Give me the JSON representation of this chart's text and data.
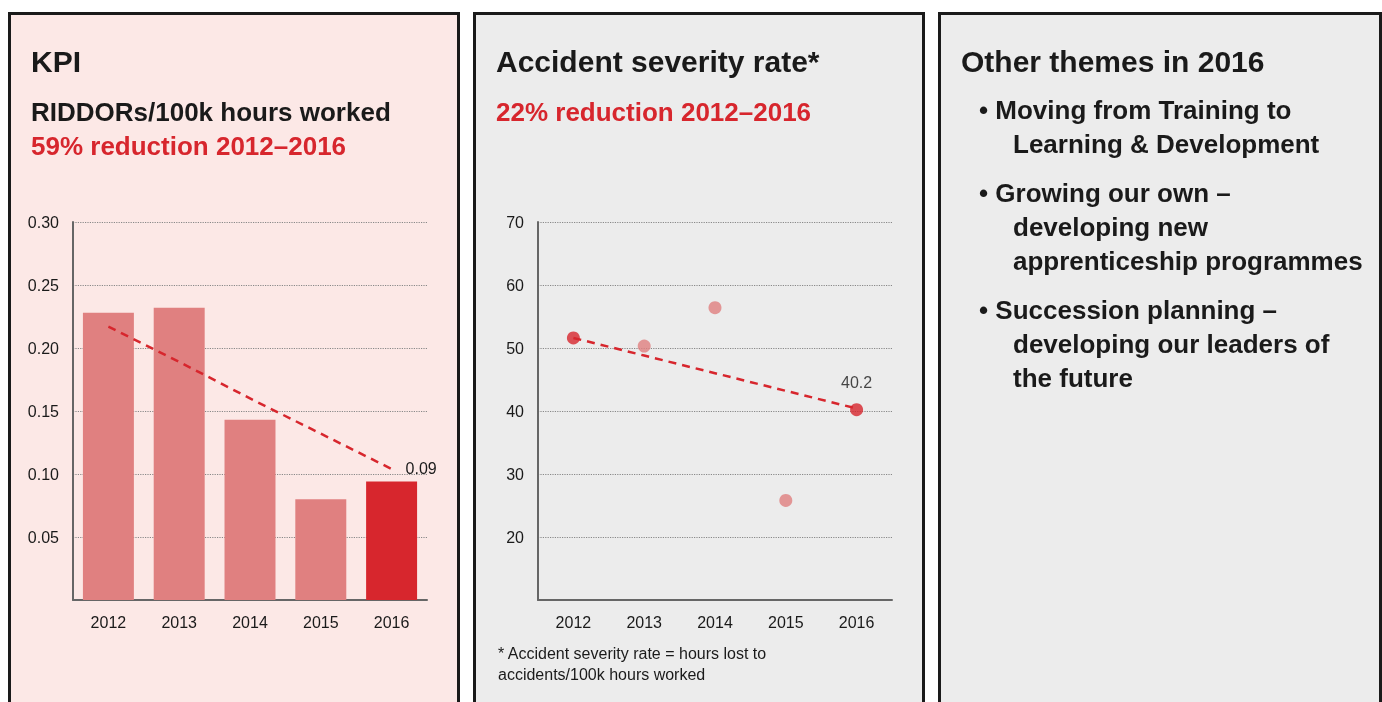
{
  "chart_data": [
    {
      "type": "bar",
      "title": "KPI",
      "ylabel": "RIDDORs/100k hours worked",
      "subtitle": "59% reduction 2012–2016",
      "categories": [
        "2012",
        "2013",
        "2014",
        "2015",
        "2016"
      ],
      "series": [
        {
          "values": [
            0.228,
            0.232,
            0.143,
            0.08,
            0.094
          ],
          "colors": [
            "#e08080",
            "#e08080",
            "#e08080",
            "#e08080",
            "#d7262d"
          ],
          "value_labels": [
            null,
            null,
            null,
            null,
            "0.09"
          ]
        },
        {
          "type": "line",
          "values": [
            0.217,
            0.189,
            0.16,
            0.132,
            0.104
          ],
          "color": "#d7262d",
          "line_style": "dashed",
          "marker": "none"
        }
      ],
      "ylim": [
        0,
        0.3
      ],
      "yticks": [
        {
          "value": 0.05,
          "label": "0.05"
        },
        {
          "value": 0.1,
          "label": "0.10"
        },
        {
          "value": 0.15,
          "label": "0.15"
        },
        {
          "value": 0.2,
          "label": "0.20"
        },
        {
          "value": 0.25,
          "label": "0.25"
        },
        {
          "value": 0.3,
          "label": "0.30"
        }
      ],
      "grid": "y"
    },
    {
      "type": "scatter",
      "title": "Accident severity rate*",
      "subtitle": "22% reduction 2012–2016",
      "categories": [
        "2012",
        "2013",
        "2014",
        "2015",
        "2016"
      ],
      "series": [
        {
          "values": [
            51.6,
            50.3,
            56.4,
            25.8,
            40.2
          ],
          "colors": [
            "#d7262d",
            "#e08080",
            "#e08080",
            "#e08080",
            "#d7262d"
          ],
          "value_labels": [
            null,
            null,
            null,
            null,
            "40.2"
          ],
          "marker": "circle"
        },
        {
          "type": "line",
          "values": [
            51.6,
            48.8,
            46.0,
            43.2,
            40.4
          ],
          "color": "#d7262d",
          "line_style": "dashed",
          "marker": "none"
        }
      ],
      "ylim": [
        10,
        70
      ],
      "yticks": [
        20,
        30,
        40,
        50,
        60,
        70
      ],
      "grid": "y",
      "annotations": [
        "* Accident severity rate = hours lost to accidents/100k hours worked"
      ]
    },
    {
      "type": "other",
      "title": "Other themes in 2016",
      "annotations": [
        "• Moving from Training to Learning & Development",
        "• Growing our own – developing new apprenticeship programmes",
        "• Succession planning – developing our leaders of the future"
      ]
    }
  ]
}
